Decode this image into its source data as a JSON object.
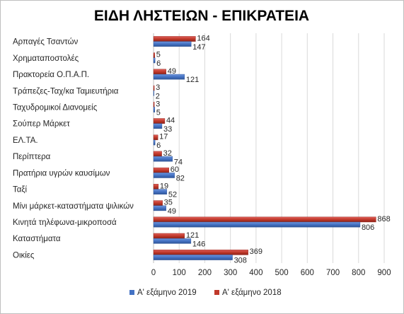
{
  "chart_data": {
    "type": "bar",
    "orientation": "horizontal",
    "title": "ΕΙΔΗ ΛΗΣΤΕΙΩΝ - ΕΠΙΚΡΑΤΕΙΑ",
    "categories": [
      "Αρπαγές Τσαντών",
      "Χρηματαποστολές",
      "Πρακτορεία Ο.Π.Α.Π.",
      "Τράπεζες-Ταχ/κα Ταμιευτήρια",
      "Ταχυδρομικοί Διανομείς",
      "Σούπερ Μάρκετ",
      "ΕΛ.ΤΑ.",
      "Περίπτερα",
      "Πρατήρια υγρών καυσίμων",
      "Ταξί",
      "Μίνι μάρκετ-καταστήματα ψιλικών",
      "Κινητά τηλέφωνα-μικροποσά",
      "Καταστήματα",
      "Οικίες"
    ],
    "series": [
      {
        "name": "Α' εξάμηνο 2019",
        "color": "#4472C4",
        "values": [
          147,
          6,
          121,
          2,
          5,
          33,
          6,
          74,
          82,
          52,
          49,
          806,
          146,
          308
        ]
      },
      {
        "name": "Α' εξάμηνο 2018",
        "color": "#C0392B",
        "values": [
          164,
          5,
          49,
          3,
          3,
          44,
          17,
          32,
          60,
          19,
          35,
          868,
          121,
          369
        ]
      }
    ],
    "xlim": [
      0,
      900
    ],
    "xticks": [
      "0",
      "100",
      "200",
      "300",
      "400",
      "500",
      "600",
      "700",
      "800",
      "900"
    ],
    "grid": "vertical",
    "legend": "bottom"
  }
}
